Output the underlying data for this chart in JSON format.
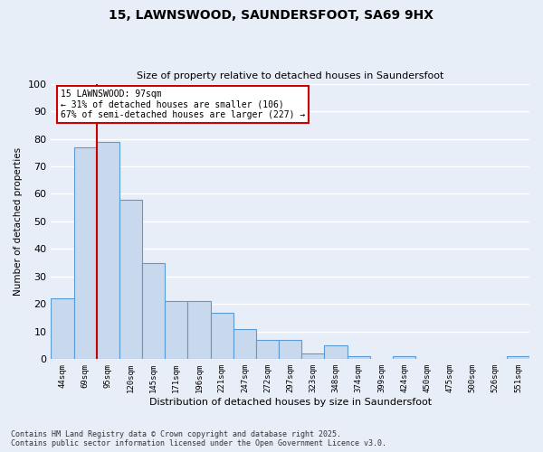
{
  "title1": "15, LAWNSWOOD, SAUNDERSFOOT, SA69 9HX",
  "title2": "Size of property relative to detached houses in Saundersfoot",
  "xlabel": "Distribution of detached houses by size in Saundersfoot",
  "ylabel": "Number of detached properties",
  "categories": [
    "44sqm",
    "69sqm",
    "95sqm",
    "120sqm",
    "145sqm",
    "171sqm",
    "196sqm",
    "221sqm",
    "247sqm",
    "272sqm",
    "297sqm",
    "323sqm",
    "348sqm",
    "374sqm",
    "399sqm",
    "424sqm",
    "450sqm",
    "475sqm",
    "500sqm",
    "526sqm",
    "551sqm"
  ],
  "values": [
    22,
    77,
    79,
    58,
    35,
    21,
    21,
    17,
    11,
    7,
    7,
    2,
    5,
    1,
    0,
    1,
    0,
    0,
    0,
    0,
    1
  ],
  "bar_color": "#c9d9ed",
  "bar_edge_color": "#5b9bd5",
  "background_color": "#e8eef7",
  "grid_color": "#ffffff",
  "vline_color": "#cc0000",
  "annotation_line1": "15 LAWNSWOOD: 97sqm",
  "annotation_line2": "← 31% of detached houses are smaller (106)",
  "annotation_line3": "67% of semi-detached houses are larger (227) →",
  "annotation_box_color": "#ffffff",
  "annotation_box_edge_color": "#cc0000",
  "footer_line1": "Contains HM Land Registry data © Crown copyright and database right 2025.",
  "footer_line2": "Contains public sector information licensed under the Open Government Licence v3.0.",
  "ylim": [
    0,
    100
  ],
  "yticks": [
    0,
    10,
    20,
    30,
    40,
    50,
    60,
    70,
    80,
    90,
    100
  ]
}
